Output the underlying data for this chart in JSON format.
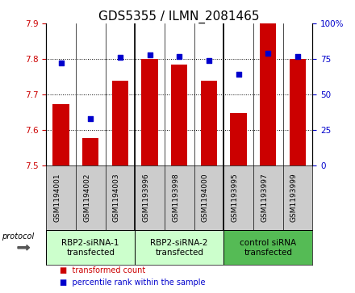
{
  "title": "GDS5355 / ILMN_2081465",
  "samples": [
    "GSM1194001",
    "GSM1194002",
    "GSM1194003",
    "GSM1193996",
    "GSM1193998",
    "GSM1194000",
    "GSM1193995",
    "GSM1193997",
    "GSM1193999"
  ],
  "red_values": [
    7.672,
    7.578,
    7.738,
    7.8,
    7.783,
    7.738,
    7.648,
    7.9,
    7.8
  ],
  "blue_values": [
    72,
    33,
    76,
    78,
    77,
    74,
    64,
    79,
    77
  ],
  "ymin": 7.5,
  "ymax": 7.9,
  "y2min": 0,
  "y2max": 100,
  "yticks": [
    7.5,
    7.6,
    7.7,
    7.8,
    7.9
  ],
  "y2ticks": [
    0,
    25,
    50,
    75,
    100
  ],
  "y2ticklabels": [
    "0",
    "25",
    "50",
    "75",
    "100%"
  ],
  "groups": [
    {
      "label": "RBP2-siRNA-1\ntransfected",
      "start": 0,
      "end": 3,
      "color": "#ccffcc"
    },
    {
      "label": "RBP2-siRNA-2\ntransfected",
      "start": 3,
      "end": 6,
      "color": "#ccffcc"
    },
    {
      "label": "control siRNA\ntransfected",
      "start": 6,
      "end": 9,
      "color": "#55bb55"
    }
  ],
  "bar_color": "#cc0000",
  "dot_color": "#0000cc",
  "bar_width": 0.55,
  "sample_bg_color": "#cccccc",
  "protocol_label": "protocol",
  "legend_red": "transformed count",
  "legend_blue": "percentile rank within the sample",
  "title_fontsize": 11,
  "tick_fontsize": 7.5,
  "sample_fontsize": 6.5,
  "group_fontsize": 7.5
}
